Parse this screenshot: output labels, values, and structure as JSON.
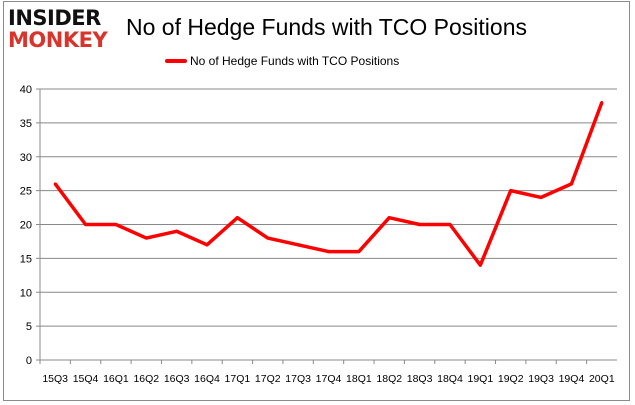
{
  "logo": {
    "line1": "INSIDER",
    "line2": "MONKEY"
  },
  "chart_data": {
    "type": "line",
    "title": "No of Hedge Funds with TCO Positions",
    "xlabel": "",
    "ylabel": "",
    "categories": [
      "15Q3",
      "15Q4",
      "16Q1",
      "16Q2",
      "16Q3",
      "16Q4",
      "17Q1",
      "17Q2",
      "17Q3",
      "17Q4",
      "18Q1",
      "18Q2",
      "18Q3",
      "18Q4",
      "19Q1",
      "19Q2",
      "19Q3",
      "19Q4",
      "20Q1"
    ],
    "series": [
      {
        "name": "No of Hedge Funds with TCO Positions",
        "color": "#ff0000",
        "values": [
          26,
          20,
          20,
          18,
          19,
          17,
          21,
          18,
          17,
          16,
          16,
          21,
          20,
          20,
          14,
          25,
          24,
          26,
          38
        ]
      }
    ],
    "ylim": [
      0,
      40
    ],
    "yticks": [
      0,
      5,
      10,
      15,
      20,
      25,
      30,
      35,
      40
    ],
    "grid": true,
    "legend": "top"
  }
}
